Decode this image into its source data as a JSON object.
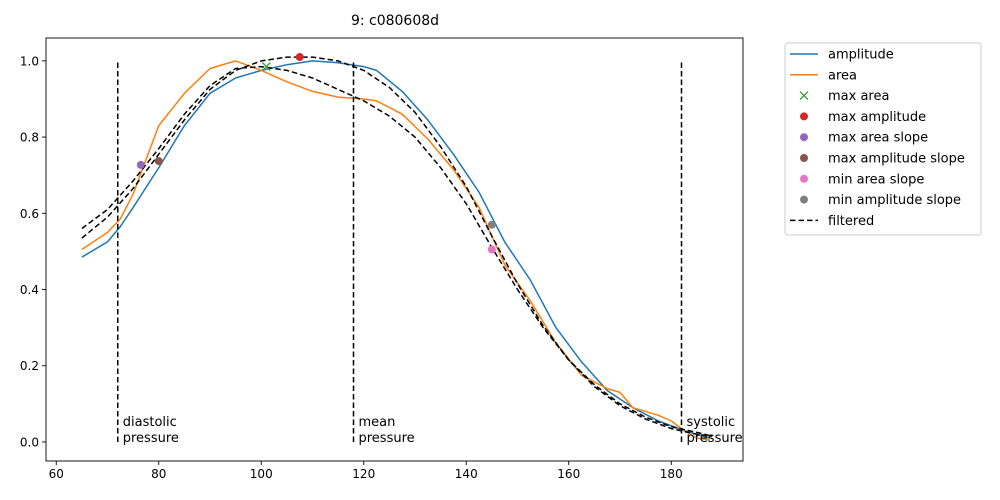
{
  "chart_data": {
    "type": "line",
    "title": "9: c080608d",
    "xlabel": "",
    "ylabel": "",
    "xlim": [
      58,
      194
    ],
    "ylim": [
      -0.05,
      1.06
    ],
    "xticks": [
      60,
      80,
      100,
      120,
      140,
      160,
      180
    ],
    "yticks": [
      0.0,
      0.2,
      0.4,
      0.6,
      0.8,
      1.0
    ],
    "xtick_labels": [
      "60",
      "80",
      "100",
      "120",
      "140",
      "160",
      "180"
    ],
    "ytick_labels": [
      "0.0",
      "0.2",
      "0.4",
      "0.6",
      "0.8",
      "1.0"
    ],
    "grid": false,
    "legend_placement": "outside-top-right",
    "series": [
      {
        "name": "amplitude",
        "style": "solid",
        "color": "#1f77b4",
        "x": [
          65,
          70,
          72.5,
          75,
          80,
          85,
          90,
          95,
          100,
          105,
          110,
          115,
          120,
          122.5,
          127.5,
          132.5,
          137.5,
          142.5,
          147.5,
          152.5,
          157.5,
          162.5,
          167.5,
          172.5,
          177.5,
          182.5,
          187.5
        ],
        "y": [
          0.485,
          0.525,
          0.565,
          0.615,
          0.72,
          0.83,
          0.915,
          0.955,
          0.975,
          0.99,
          1.0,
          0.995,
          0.985,
          0.975,
          0.92,
          0.845,
          0.755,
          0.655,
          0.525,
          0.425,
          0.3,
          0.21,
          0.135,
          0.09,
          0.055,
          0.03,
          0.01
        ]
      },
      {
        "name": "area",
        "style": "solid",
        "color": "#ff7f0e",
        "x": [
          65,
          70,
          72.5,
          75,
          77.5,
          80,
          85,
          90,
          95,
          100,
          105,
          110,
          115,
          120,
          122.5,
          127.5,
          132.5,
          137.5,
          142.5,
          147.5,
          152.5,
          157.5,
          162.5,
          167.5,
          170,
          172.5,
          177.5,
          180,
          182.5,
          185,
          187.5
        ],
        "y": [
          0.505,
          0.55,
          0.585,
          0.65,
          0.74,
          0.83,
          0.915,
          0.98,
          1.0,
          0.975,
          0.945,
          0.92,
          0.905,
          0.9,
          0.895,
          0.86,
          0.795,
          0.715,
          0.615,
          0.465,
          0.37,
          0.26,
          0.175,
          0.14,
          0.13,
          0.09,
          0.07,
          0.055,
          0.03,
          0.01,
          0.005
        ]
      },
      {
        "name": "filtered",
        "style": "dashed",
        "color": "#000000",
        "x": [
          65,
          70,
          75,
          80,
          85,
          90,
          95,
          100,
          105,
          110,
          115,
          120,
          125,
          130,
          135,
          140,
          145,
          150,
          155,
          160,
          165,
          170,
          175,
          180,
          185,
          188
        ],
        "y": [
          0.535,
          0.59,
          0.665,
          0.755,
          0.845,
          0.925,
          0.975,
          1.0,
          1.01,
          1.01,
          1.0,
          0.975,
          0.93,
          0.865,
          0.775,
          0.67,
          0.54,
          0.415,
          0.305,
          0.215,
          0.145,
          0.095,
          0.06,
          0.035,
          0.02,
          0.015
        ]
      },
      {
        "name": "filtered",
        "style": "dashed",
        "color": "#000000",
        "x": [
          65,
          70,
          75,
          80,
          85,
          90,
          95,
          100,
          105,
          110,
          115,
          120,
          125,
          130,
          135,
          140,
          145,
          150,
          155,
          160,
          165,
          170,
          175,
          180,
          185,
          188
        ],
        "y": [
          0.56,
          0.61,
          0.685,
          0.77,
          0.86,
          0.935,
          0.98,
          0.985,
          0.975,
          0.955,
          0.925,
          0.895,
          0.855,
          0.8,
          0.72,
          0.625,
          0.51,
          0.4,
          0.3,
          0.215,
          0.15,
          0.1,
          0.065,
          0.04,
          0.025,
          0.015
        ]
      }
    ],
    "markers": [
      {
        "name": "max area",
        "symbol": "x",
        "color": "#2ca02c",
        "x": 101,
        "y": 0.985
      },
      {
        "name": "max amplitude",
        "symbol": "circle",
        "color": "#d62728",
        "x": 107.5,
        "y": 1.01
      },
      {
        "name": "max area slope",
        "symbol": "circle",
        "color": "#9467bd",
        "x": 76.5,
        "y": 0.727
      },
      {
        "name": "max amplitude slope",
        "symbol": "circle",
        "color": "#8c564b",
        "x": 80,
        "y": 0.737
      },
      {
        "name": "min area slope",
        "symbol": "circle",
        "color": "#e377c2",
        "x": 145,
        "y": 0.505
      },
      {
        "name": "min amplitude slope",
        "symbol": "circle",
        "color": "#7f7f7f",
        "x": 145,
        "y": 0.57
      }
    ],
    "vlines": [
      {
        "x": 72,
        "y0": 0.0,
        "y1": 1.0,
        "label_line1": "diastolic",
        "label_line2": "pressure"
      },
      {
        "x": 118,
        "y0": 0.0,
        "y1": 1.0,
        "label_line1": "mean",
        "label_line2": "pressure"
      },
      {
        "x": 182,
        "y0": 0.0,
        "y1": 1.0,
        "label_line1": "systolic",
        "label_line2": "pressure"
      }
    ],
    "legend": [
      {
        "label": "amplitude",
        "kind": "line",
        "color": "#1f77b4"
      },
      {
        "label": "area",
        "kind": "line",
        "color": "#ff7f0e"
      },
      {
        "label": "max area",
        "kind": "x",
        "color": "#2ca02c"
      },
      {
        "label": "max amplitude",
        "kind": "circle",
        "color": "#d62728"
      },
      {
        "label": "max area slope",
        "kind": "circle",
        "color": "#9467bd"
      },
      {
        "label": "max amplitude slope",
        "kind": "circle",
        "color": "#8c564b"
      },
      {
        "label": "min area slope",
        "kind": "circle",
        "color": "#e377c2"
      },
      {
        "label": "min amplitude slope",
        "kind": "circle",
        "color": "#7f7f7f"
      },
      {
        "label": "filtered",
        "kind": "dashed",
        "color": "#000000"
      }
    ]
  }
}
